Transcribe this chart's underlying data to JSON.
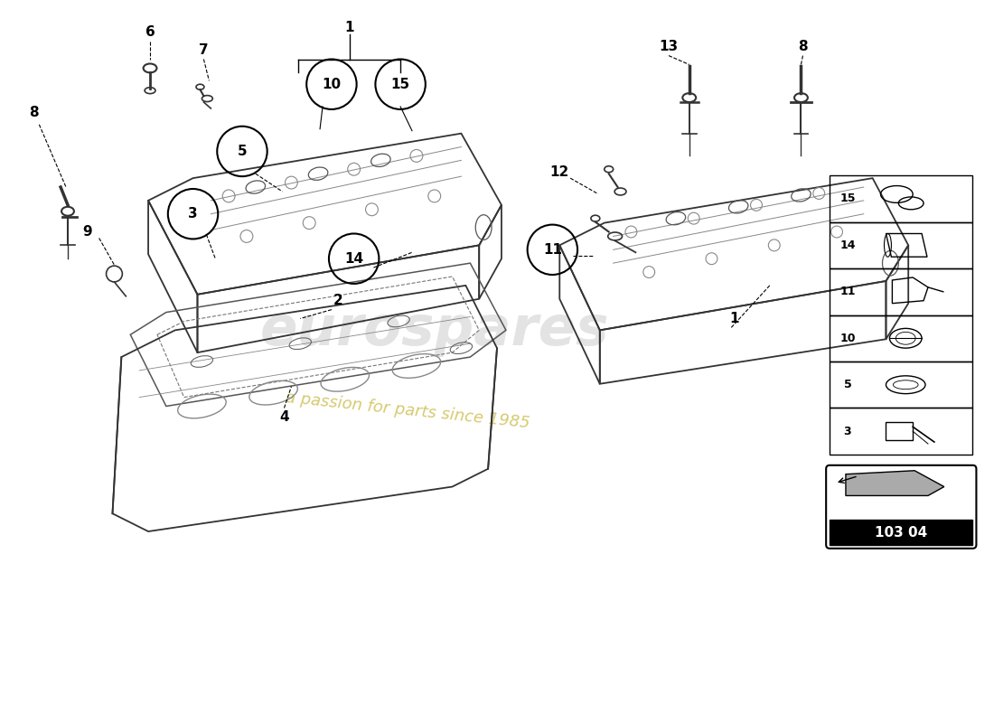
{
  "title": "",
  "background_color": "#ffffff",
  "watermark_text1": "eurospares",
  "watermark_text2": "a passion for parts since 1985",
  "part_code": "103 04",
  "legend_items": [
    {
      "num": "15",
      "shape": "two_rings"
    },
    {
      "num": "14",
      "shape": "tube"
    },
    {
      "num": "11",
      "shape": "plug"
    },
    {
      "num": "10",
      "shape": "cap"
    },
    {
      "num": "5",
      "shape": "seal"
    },
    {
      "num": "3",
      "shape": "bolt"
    }
  ]
}
